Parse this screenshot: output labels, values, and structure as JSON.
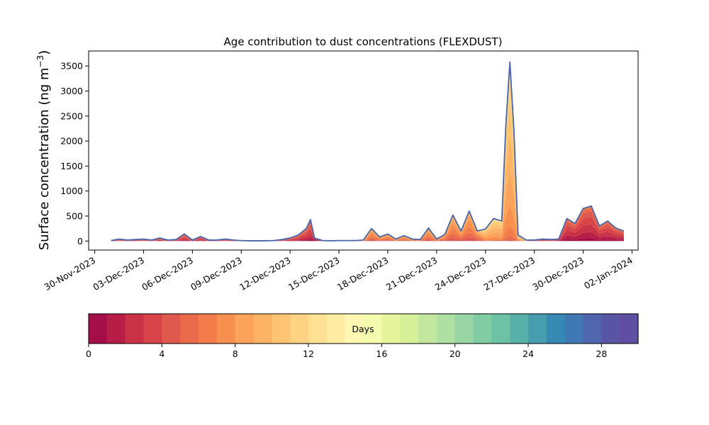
{
  "chart_data": [
    {
      "type": "area",
      "title": "Age contribution to dust concentrations (FLEXDUST)",
      "xlabel": "",
      "ylabel_main": "Surface concentration (ng m",
      "ylabel_sup": "−3",
      "ylabel_close": ")",
      "xlim": [
        "2023-11-30",
        "2024-01-02"
      ],
      "ylim": [
        -180,
        3800
      ],
      "yticks": [
        0,
        500,
        1000,
        1500,
        2000,
        2500,
        3000,
        3500
      ],
      "ytick_labels": [
        "0",
        "500",
        "1000",
        "1500",
        "2000",
        "2500",
        "3000",
        "3500"
      ],
      "xticks": [
        "2023-11-30",
        "2023-12-03",
        "2023-12-06",
        "2023-12-09",
        "2023-12-12",
        "2023-12-15",
        "2023-12-18",
        "2023-12-21",
        "2023-12-24",
        "2023-12-27",
        "2023-12-30",
        "2024-01-02"
      ],
      "xtick_labels": [
        "30-Nov-2023",
        "03-Dec-2023",
        "06-Dec-2023",
        "09-Dec-2023",
        "12-Dec-2023",
        "15-Dec-2023",
        "18-Dec-2023",
        "21-Dec-2023",
        "24-Dec-2023",
        "27-Dec-2023",
        "30-Dec-2023",
        "02-Jan-2024"
      ],
      "grid": false,
      "series_total": {
        "x": [
          "2023-12-01T00",
          "2023-12-01T12",
          "2023-12-02T00",
          "2023-12-02T12",
          "2023-12-03T00",
          "2023-12-03T12",
          "2023-12-04T00",
          "2023-12-04T12",
          "2023-12-05T00",
          "2023-12-05T12",
          "2023-12-06T00",
          "2023-12-06T12",
          "2023-12-07T00",
          "2023-12-07T12",
          "2023-12-08T00",
          "2023-12-08T12",
          "2023-12-09T00",
          "2023-12-09T12",
          "2023-12-10T00",
          "2023-12-10T12",
          "2023-12-11T00",
          "2023-12-11T12",
          "2023-12-12T00",
          "2023-12-12T12",
          "2023-12-13T00",
          "2023-12-13T06",
          "2023-12-13T12",
          "2023-12-14T00",
          "2023-12-14T12",
          "2023-12-15T00",
          "2023-12-15T12",
          "2023-12-16T00",
          "2023-12-16T12",
          "2023-12-17T00",
          "2023-12-17T12",
          "2023-12-18T00",
          "2023-12-18T12",
          "2023-12-19T00",
          "2023-12-19T12",
          "2023-12-20T00",
          "2023-12-20T12",
          "2023-12-21T00",
          "2023-12-21T12",
          "2023-12-22T00",
          "2023-12-22T12",
          "2023-12-23T00",
          "2023-12-23T12",
          "2023-12-24T00",
          "2023-12-24T12",
          "2023-12-25T00",
          "2023-12-25T06",
          "2023-12-25T12",
          "2023-12-25T18",
          "2023-12-26T00",
          "2023-12-26T12",
          "2023-12-27T00",
          "2023-12-27T12",
          "2023-12-28T00",
          "2023-12-28T12",
          "2023-12-29T00",
          "2023-12-29T12",
          "2023-12-30T00",
          "2023-12-30T12",
          "2023-12-31T00",
          "2023-12-31T12",
          "2024-01-01T00",
          "2024-01-01T12"
        ],
        "y": [
          10,
          40,
          20,
          30,
          40,
          20,
          60,
          20,
          30,
          140,
          20,
          90,
          20,
          20,
          40,
          20,
          10,
          5,
          5,
          5,
          10,
          30,
          60,
          120,
          250,
          430,
          60,
          10,
          5,
          10,
          10,
          10,
          20,
          250,
          80,
          140,
          40,
          110,
          40,
          30,
          260,
          40,
          130,
          520,
          200,
          600,
          200,
          240,
          450,
          400,
          2300,
          3580,
          2200,
          120,
          20,
          20,
          40,
          30,
          40,
          450,
          350,
          650,
          700,
          300,
          400,
          260,
          200
        ]
      }
    },
    {
      "type": "colorbar",
      "label": "Days",
      "range": [
        0,
        30
      ],
      "ticks": [
        0,
        4,
        8,
        12,
        16,
        20,
        24,
        28
      ],
      "tick_labels": [
        "0",
        "4",
        "8",
        "12",
        "16",
        "20",
        "24",
        "28"
      ],
      "colors": [
        "#a50f49",
        "#b71e47",
        "#c93345",
        "#d74549",
        "#e0594e",
        "#e96b4c",
        "#f37d4a",
        "#f7904f",
        "#fba25b",
        "#fdb366",
        "#fdc474",
        "#fdd283",
        "#fee193",
        "#fdeca1",
        "#fef8b2",
        "#f4faae",
        "#e6f59c",
        "#d6ef99",
        "#c3e79f",
        "#ade0a1",
        "#98d6a4",
        "#82cca4",
        "#6dc1a5",
        "#58b1a9",
        "#469dad",
        "#3589b2",
        "#3f78b3",
        "#4f66ae",
        "#5a54a4",
        "#5e4fa2"
      ]
    }
  ]
}
